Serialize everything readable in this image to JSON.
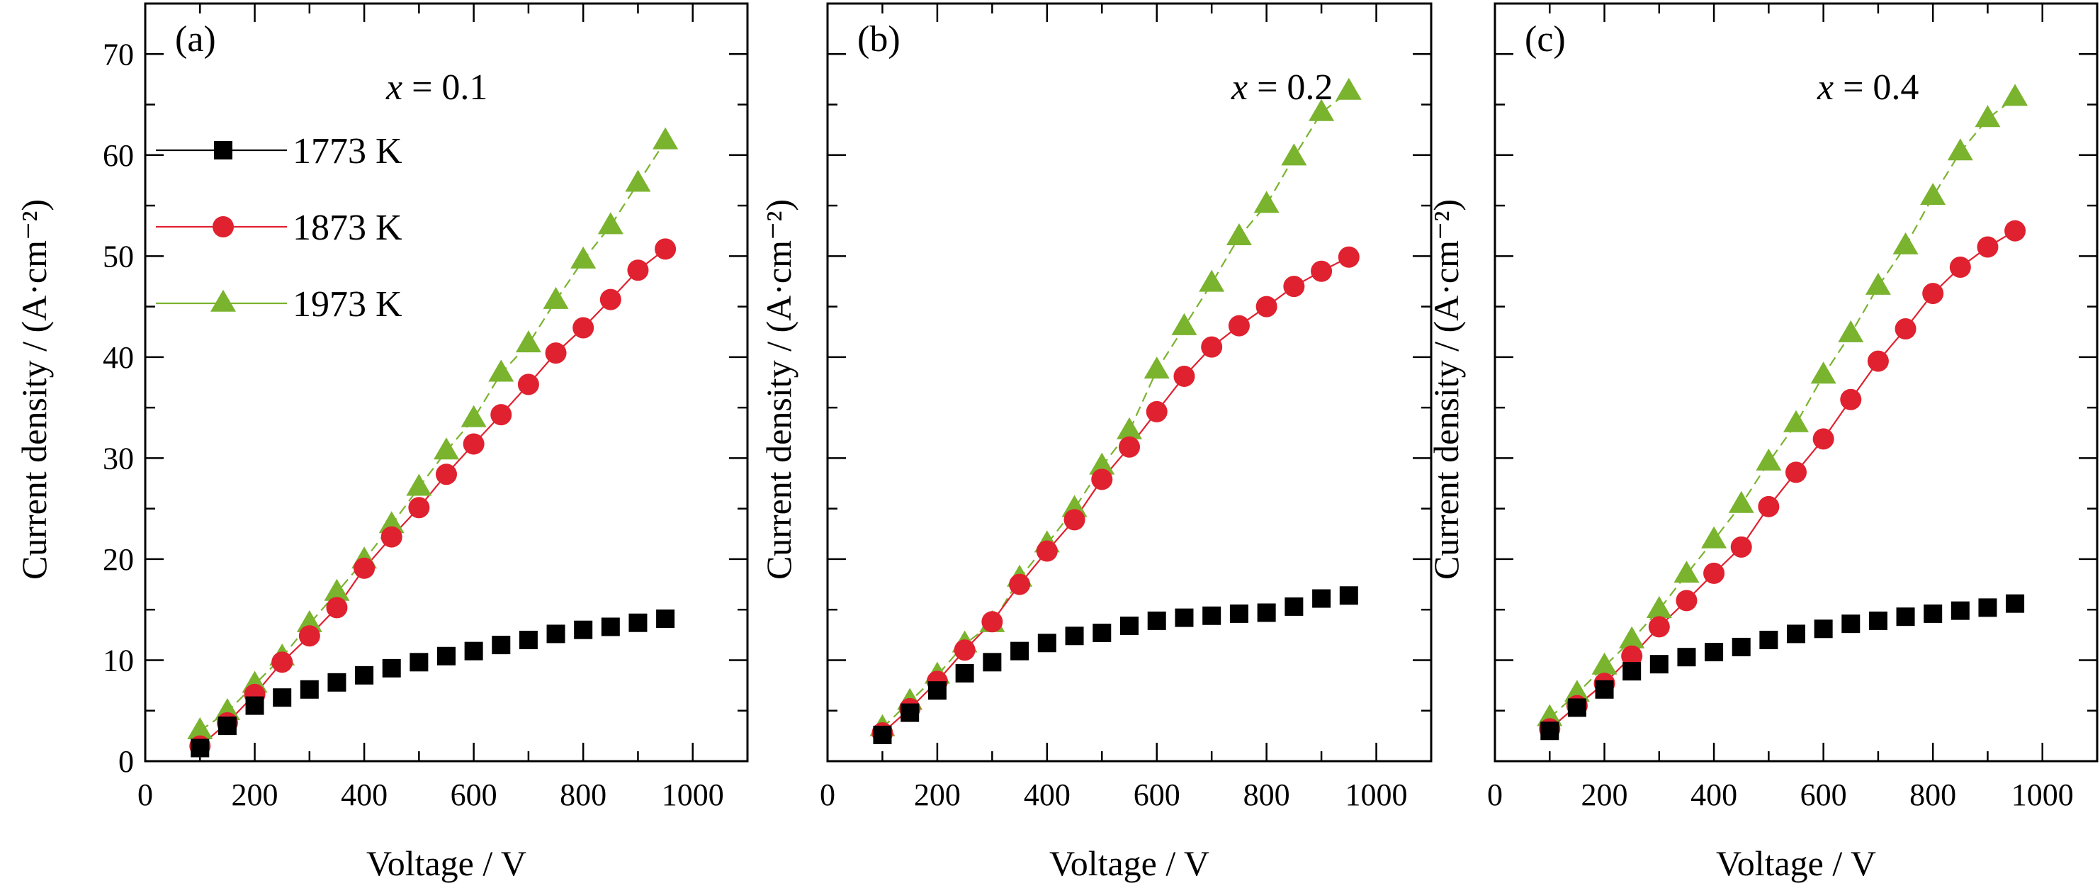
{
  "chart_data": [
    {
      "type": "line",
      "panel_label": "(a)",
      "annotation": "= 0.1",
      "annotation_var": "x",
      "xlabel": "Voltage / V",
      "ylabel": "Current density / (A·cm⁻²)",
      "xlim": [
        0,
        1100
      ],
      "ylim": [
        0,
        75
      ],
      "xticks": [
        0,
        200,
        400,
        600,
        800,
        1000
      ],
      "yticks": [
        0,
        10,
        20,
        30,
        40,
        50,
        60,
        70
      ],
      "show_ytick_labels": true,
      "legend_position": "upper-left",
      "x": [
        100,
        150,
        200,
        250,
        300,
        350,
        400,
        450,
        500,
        550,
        600,
        650,
        700,
        750,
        800,
        850,
        900,
        950
      ],
      "series": [
        {
          "name": "1773 K",
          "marker": "square",
          "color": "#000000",
          "line": "none",
          "values": [
            1.3,
            3.5,
            5.5,
            6.3,
            7.1,
            7.8,
            8.5,
            9.2,
            9.8,
            10.4,
            10.9,
            11.5,
            12.0,
            12.6,
            13.0,
            13.3,
            13.7,
            14.1
          ]
        },
        {
          "name": "1873 K",
          "marker": "circle",
          "color": "#e0212f",
          "line": "solid",
          "values": [
            1.5,
            3.8,
            6.6,
            9.8,
            12.4,
            15.2,
            19.1,
            22.2,
            25.1,
            28.4,
            31.4,
            34.3,
            37.3,
            40.4,
            42.9,
            45.7,
            48.6,
            50.7
          ]
        },
        {
          "name": "1973 K",
          "marker": "triangle",
          "color": "#7ab32e",
          "line": "dashed",
          "values": [
            3.0,
            4.9,
            7.6,
            10.3,
            13.6,
            16.7,
            19.9,
            23.4,
            27.1,
            30.7,
            33.9,
            38.4,
            41.3,
            45.6,
            49.6,
            53.0,
            57.2,
            61.4
          ]
        }
      ]
    },
    {
      "type": "line",
      "panel_label": "(b)",
      "annotation": "= 0.2",
      "annotation_var": "x",
      "xlabel": "Voltage / V",
      "ylabel": "Current density / (A·cm⁻²)",
      "xlim": [
        0,
        1100
      ],
      "ylim": [
        0,
        75
      ],
      "xticks": [
        0,
        200,
        400,
        600,
        800,
        1000
      ],
      "yticks": [
        0,
        10,
        20,
        30,
        40,
        50,
        60,
        70
      ],
      "show_ytick_labels": false,
      "x": [
        100,
        150,
        200,
        250,
        300,
        350,
        400,
        450,
        500,
        550,
        600,
        650,
        700,
        750,
        800,
        850,
        900,
        950
      ],
      "series": [
        {
          "name": "1773 K",
          "marker": "square",
          "color": "#000000",
          "line": "none",
          "values": [
            2.6,
            4.8,
            7.0,
            8.7,
            9.8,
            10.9,
            11.7,
            12.4,
            12.7,
            13.4,
            13.9,
            14.2,
            14.4,
            14.6,
            14.7,
            15.3,
            16.1,
            16.4
          ]
        },
        {
          "name": "1873 K",
          "marker": "circle",
          "color": "#e0212f",
          "line": "solid",
          "values": [
            2.8,
            5.2,
            7.9,
            11.0,
            13.8,
            17.5,
            20.8,
            23.9,
            27.9,
            31.1,
            34.6,
            38.1,
            41.0,
            43.1,
            45.0,
            47.0,
            48.5,
            49.9
          ]
        },
        {
          "name": "1973 K",
          "marker": "triangle",
          "color": "#7ab32e",
          "line": "dashed",
          "values": [
            3.3,
            5.9,
            8.5,
            11.6,
            13.6,
            18.1,
            21.5,
            25.0,
            29.2,
            32.7,
            38.7,
            43.0,
            47.3,
            51.9,
            55.1,
            59.8,
            64.2,
            66.3
          ]
        }
      ]
    },
    {
      "type": "line",
      "panel_label": "(c)",
      "annotation": "= 0.4",
      "annotation_var": "x",
      "xlabel": "Voltage / V",
      "ylabel": "Current density / (A·cm⁻²)",
      "xlim": [
        0,
        1100
      ],
      "ylim": [
        0,
        75
      ],
      "xticks": [
        0,
        200,
        400,
        600,
        800,
        1000
      ],
      "yticks": [
        0,
        10,
        20,
        30,
        40,
        50,
        60,
        70
      ],
      "show_ytick_labels": false,
      "x": [
        100,
        150,
        200,
        250,
        300,
        350,
        400,
        450,
        500,
        550,
        600,
        650,
        700,
        750,
        800,
        850,
        900,
        950
      ],
      "series": [
        {
          "name": "1773 K",
          "marker": "square",
          "color": "#000000",
          "line": "none",
          "values": [
            3.0,
            5.3,
            7.1,
            8.9,
            9.6,
            10.3,
            10.8,
            11.3,
            12.0,
            12.6,
            13.1,
            13.6,
            13.9,
            14.3,
            14.6,
            14.9,
            15.2,
            15.6
          ]
        },
        {
          "name": "1873 K",
          "marker": "circle",
          "color": "#e0212f",
          "line": "solid",
          "values": [
            3.2,
            5.5,
            7.7,
            10.4,
            13.3,
            15.9,
            18.6,
            21.2,
            25.2,
            28.6,
            31.9,
            35.8,
            39.6,
            42.8,
            46.3,
            48.9,
            50.9,
            52.5
          ]
        },
        {
          "name": "1973 K",
          "marker": "triangle",
          "color": "#7ab32e",
          "line": "dashed",
          "values": [
            4.3,
            6.7,
            9.4,
            12.0,
            15.0,
            18.5,
            21.9,
            25.4,
            29.6,
            33.4,
            38.2,
            42.3,
            47.0,
            51.0,
            55.9,
            60.3,
            63.6,
            65.7
          ]
        }
      ]
    }
  ]
}
